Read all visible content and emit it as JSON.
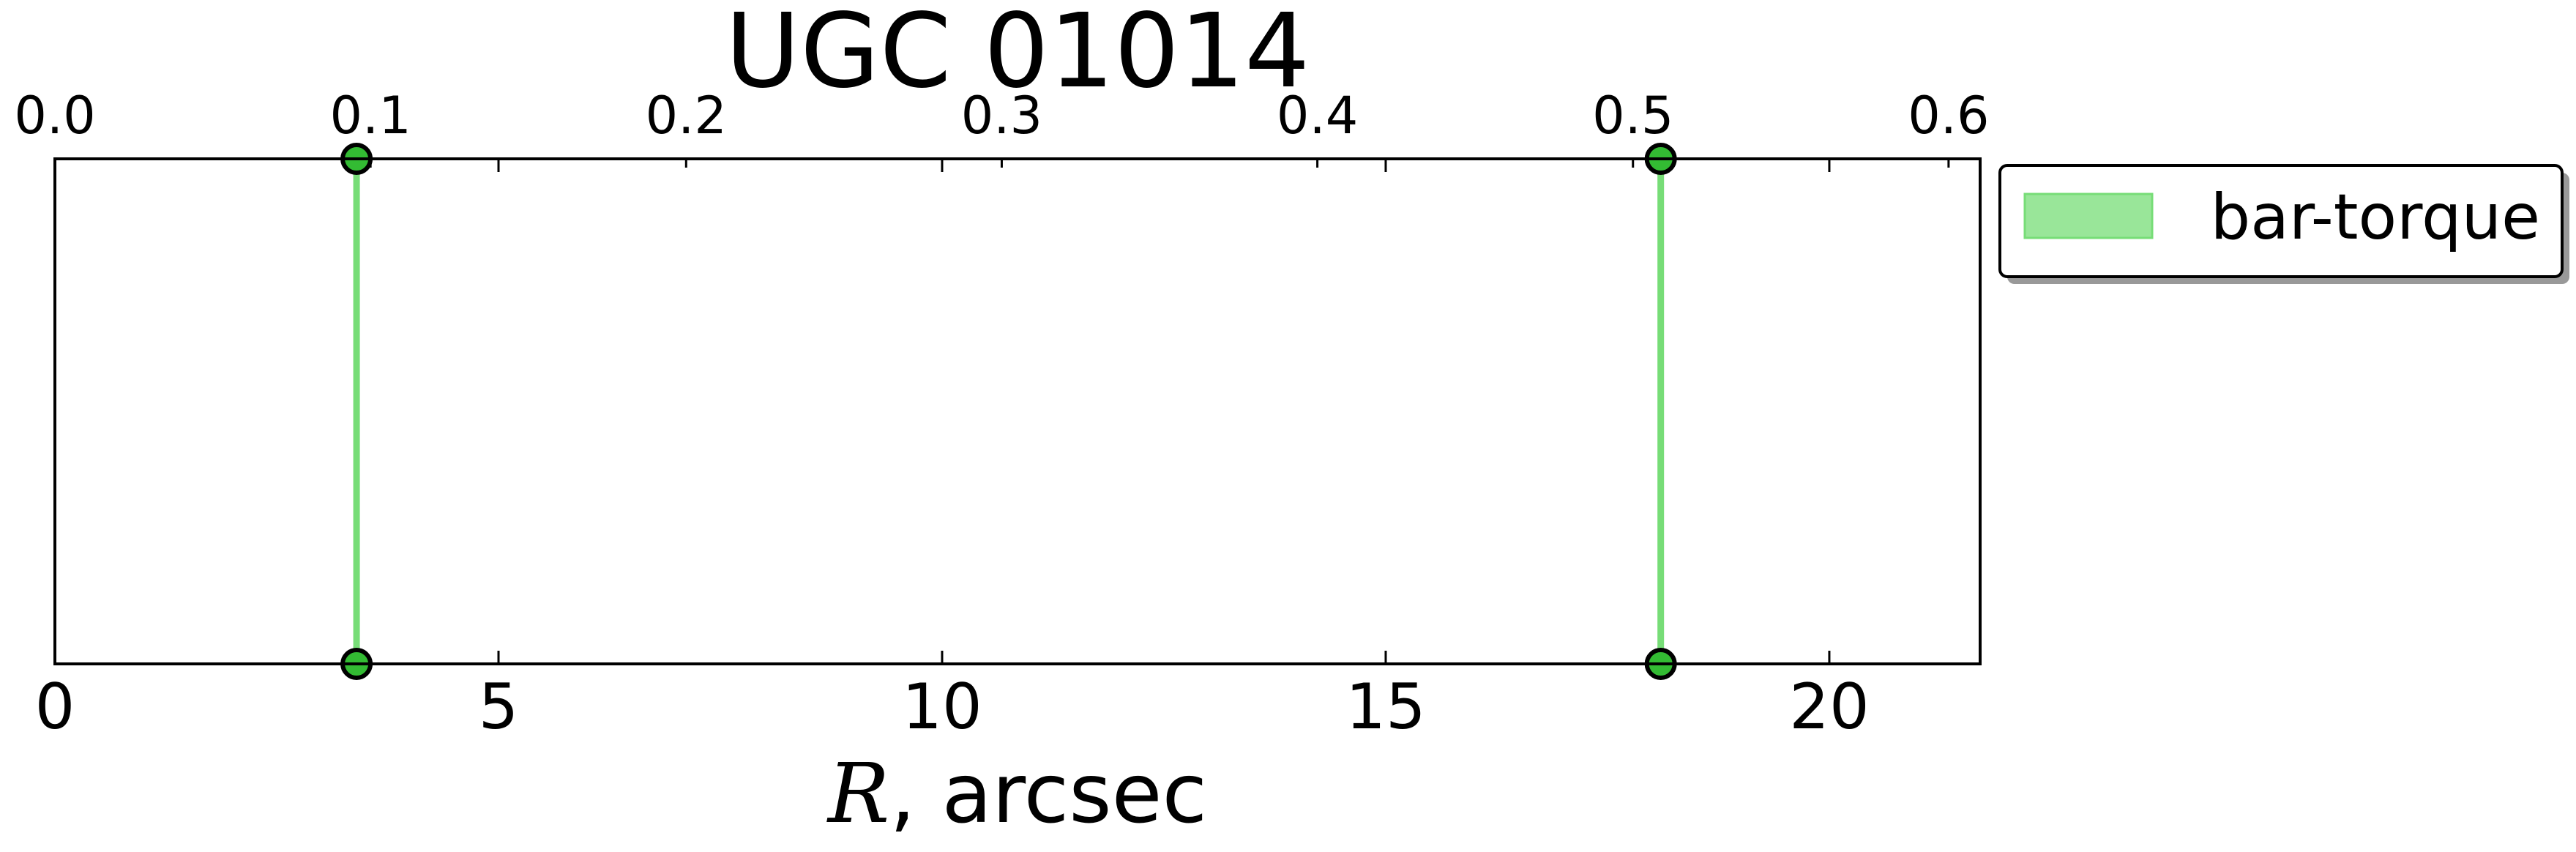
{
  "chart_data": {
    "type": "line",
    "title": "UGC 01014",
    "xlabel_var": "R",
    "xlabel_unit": ", arcsec",
    "xlim": [
      0,
      21.7
    ],
    "xticks": [
      0,
      5,
      10,
      15,
      20
    ],
    "xtick_labels": [
      "0",
      "5",
      "10",
      "15",
      "20"
    ],
    "top_axis": {
      "xlim": [
        0,
        0.61
      ],
      "ticks": [
        0.0,
        0.1,
        0.2,
        0.3,
        0.4,
        0.5,
        0.6
      ],
      "tick_labels": [
        "0.0",
        "0.1",
        "0.2",
        "0.3",
        "0.4",
        "0.5",
        "0.6"
      ]
    },
    "grid": false,
    "legend_position": "outside right, top",
    "series": [
      {
        "name": "bar-torque",
        "color": "#77dd77",
        "marker_color": "#33bb33",
        "x": [
          3.4,
          18.1
        ]
      }
    ]
  }
}
